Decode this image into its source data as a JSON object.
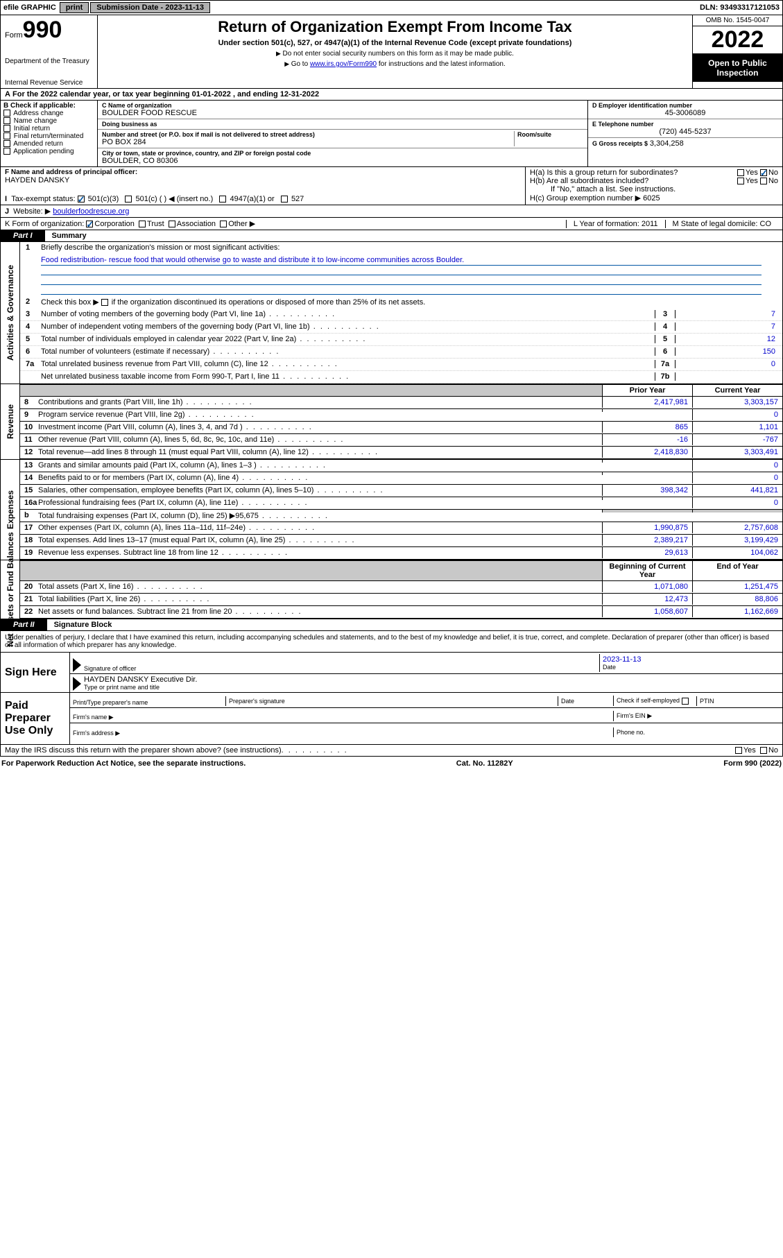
{
  "topbar": {
    "efile": "efile GRAPHIC",
    "print": "print",
    "sub_label": "Submission Date -",
    "sub_date": "2023-11-13",
    "dln_label": "DLN:",
    "dln": "93493317121053"
  },
  "header": {
    "form": "Form",
    "num": "990",
    "dept": "Department of the Treasury",
    "irs": "Internal Revenue Service",
    "title": "Return of Organization Exempt From Income Tax",
    "sub": "Under section 501(c), 527, or 4947(a)(1) of the Internal Revenue Code (except private foundations)",
    "instr1": "Do not enter social security numbers on this form as it may be made public.",
    "instr2_pre": "Go to ",
    "instr2_link": "www.irs.gov/Form990",
    "instr2_post": " for instructions and the latest information.",
    "omb": "OMB No. 1545-0047",
    "year": "2022",
    "open": "Open to Public Inspection"
  },
  "A": {
    "text": "For the 2022 calendar year, or tax year beginning ",
    "begin": "01-01-2022",
    "mid": " , and ending ",
    "end": "12-31-2022"
  },
  "B": {
    "label": "B Check if applicable:",
    "items": [
      "Address change",
      "Name change",
      "Initial return",
      "Final return/terminated",
      "Amended return",
      "Application pending"
    ]
  },
  "C": {
    "name_lbl": "C Name of organization",
    "name": "BOULDER FOOD RESCUE",
    "dba_lbl": "Doing business as",
    "dba": "",
    "street_lbl": "Number and street (or P.O. box if mail is not delivered to street address)",
    "street": "PO BOX 284",
    "room_lbl": "Room/suite",
    "city_lbl": "City or town, state or province, country, and ZIP or foreign postal code",
    "city": "BOULDER, CO  80306"
  },
  "D": {
    "lbl": "D Employer identification number",
    "val": "45-3006089"
  },
  "E": {
    "lbl": "E Telephone number",
    "val": "(720) 445-5237"
  },
  "G": {
    "lbl": "G Gross receipts $",
    "val": "3,304,258"
  },
  "F": {
    "lbl": "F Name and address of principal officer:",
    "val": "HAYDEN DANSKY"
  },
  "H": {
    "a": "H(a)  Is this a group return for subordinates?",
    "yes": "Yes",
    "no": "No",
    "b": "H(b)  Are all subordinates included?",
    "bnote": "If \"No,\" attach a list. See instructions.",
    "c_lbl": "H(c)  Group exemption number ▶",
    "c_val": "6025"
  },
  "I": {
    "lbl": "Tax-exempt status:",
    "opts": [
      "501(c)(3)",
      "501(c) (  ) ◀ (insert no.)",
      "4947(a)(1) or",
      "527"
    ]
  },
  "J": {
    "lbl": "Website: ▶",
    "val": "boulderfoodrescue.org"
  },
  "K": {
    "lbl": "K Form of organization:",
    "opts": [
      "Corporation",
      "Trust",
      "Association",
      "Other ▶"
    ]
  },
  "L": {
    "lbl": "L Year of formation:",
    "val": "2011"
  },
  "M": {
    "lbl": "M State of legal domicile:",
    "val": "CO"
  },
  "part1": {
    "tab": "Part I",
    "title": "Summary"
  },
  "summary": {
    "l1_lead": "1",
    "l1": "Briefly describe the organization's mission or most significant activities:",
    "mission": "Food redistribution- rescue food that would otherwise go to waste and distribute it to low-income communities across Boulder.",
    "l2_lead": "2",
    "l2": "Check this box ▶",
    "l2b": " if the organization discontinued its operations or disposed of more than 25% of its net assets.",
    "lines_gov": [
      {
        "n": "3",
        "d": "Number of voting members of the governing body (Part VI, line 1a)",
        "box": "3",
        "v": "7"
      },
      {
        "n": "4",
        "d": "Number of independent voting members of the governing body (Part VI, line 1b)",
        "box": "4",
        "v": "7"
      },
      {
        "n": "5",
        "d": "Total number of individuals employed in calendar year 2022 (Part V, line 2a)",
        "box": "5",
        "v": "12"
      },
      {
        "n": "6",
        "d": "Total number of volunteers (estimate if necessary)",
        "box": "6",
        "v": "150"
      },
      {
        "n": "7a",
        "d": "Total unrelated business revenue from Part VIII, column (C), line 12",
        "box": "7a",
        "v": "0"
      },
      {
        "n": "",
        "d": "Net unrelated business taxable income from Form 990-T, Part I, line 11",
        "box": "7b",
        "v": ""
      }
    ],
    "col_prior": "Prior Year",
    "col_curr": "Current Year",
    "rev": [
      {
        "n": "8",
        "d": "Contributions and grants (Part VIII, line 1h)",
        "p": "2,417,981",
        "c": "3,303,157"
      },
      {
        "n": "9",
        "d": "Program service revenue (Part VIII, line 2g)",
        "p": "",
        "c": "0"
      },
      {
        "n": "10",
        "d": "Investment income (Part VIII, column (A), lines 3, 4, and 7d )",
        "p": "865",
        "c": "1,101"
      },
      {
        "n": "11",
        "d": "Other revenue (Part VIII, column (A), lines 5, 6d, 8c, 9c, 10c, and 11e)",
        "p": "-16",
        "c": "-767"
      },
      {
        "n": "12",
        "d": "Total revenue—add lines 8 through 11 (must equal Part VIII, column (A), line 12)",
        "p": "2,418,830",
        "c": "3,303,491"
      }
    ],
    "exp": [
      {
        "n": "13",
        "d": "Grants and similar amounts paid (Part IX, column (A), lines 1–3 )",
        "p": "",
        "c": "0"
      },
      {
        "n": "14",
        "d": "Benefits paid to or for members (Part IX, column (A), line 4)",
        "p": "",
        "c": "0"
      },
      {
        "n": "15",
        "d": "Salaries, other compensation, employee benefits (Part IX, column (A), lines 5–10)",
        "p": "398,342",
        "c": "441,821"
      },
      {
        "n": "16a",
        "d": "Professional fundraising fees (Part IX, column (A), line 11e)",
        "p": "",
        "c": "0"
      },
      {
        "n": "b",
        "d": "Total fundraising expenses (Part IX, column (D), line 25) ▶95,675",
        "p": "shade",
        "c": "shade"
      },
      {
        "n": "17",
        "d": "Other expenses (Part IX, column (A), lines 11a–11d, 11f–24e)",
        "p": "1,990,875",
        "c": "2,757,608"
      },
      {
        "n": "18",
        "d": "Total expenses. Add lines 13–17 (must equal Part IX, column (A), line 25)",
        "p": "2,389,217",
        "c": "3,199,429"
      },
      {
        "n": "19",
        "d": "Revenue less expenses. Subtract line 18 from line 12",
        "p": "29,613",
        "c": "104,062"
      }
    ],
    "col_begin": "Beginning of Current Year",
    "col_end": "End of Year",
    "net": [
      {
        "n": "20",
        "d": "Total assets (Part X, line 16)",
        "p": "1,071,080",
        "c": "1,251,475"
      },
      {
        "n": "21",
        "d": "Total liabilities (Part X, line 26)",
        "p": "12,473",
        "c": "88,806"
      },
      {
        "n": "22",
        "d": "Net assets or fund balances. Subtract line 21 from line 20",
        "p": "1,058,607",
        "c": "1,162,669"
      }
    ]
  },
  "sides": {
    "gov": "Activities & Governance",
    "rev": "Revenue",
    "exp": "Expenses",
    "net": "Net Assets or Fund Balances"
  },
  "part2": {
    "tab": "Part II",
    "title": "Signature Block"
  },
  "sig": {
    "decl": "Under penalties of perjury, I declare that I have examined this return, including accompanying schedules and statements, and to the best of my knowledge and belief, it is true, correct, and complete. Declaration of preparer (other than officer) is based on all information of which preparer has any knowledge.",
    "sign_here": "Sign Here",
    "sig_officer": "Signature of officer",
    "date_lbl": "Date",
    "date": "2023-11-13",
    "name": "HAYDEN DANSKY  Executive Dir.",
    "name_lbl": "Type or print name and title",
    "paid": "Paid Preparer Use Only",
    "prep_name": "Print/Type preparer's name",
    "prep_sig": "Preparer's signature",
    "check_self": "Check         if self-employed",
    "ptin": "PTIN",
    "firm_name": "Firm's name  ▶",
    "firm_ein": "Firm's EIN ▶",
    "firm_addr": "Firm's address ▶",
    "phone": "Phone no.",
    "may": "May the IRS discuss this return with the preparer shown above? (see instructions)"
  },
  "footer": {
    "left": "For Paperwork Reduction Act Notice, see the separate instructions.",
    "mid": "Cat. No. 11282Y",
    "right": "Form 990 (2022)"
  }
}
